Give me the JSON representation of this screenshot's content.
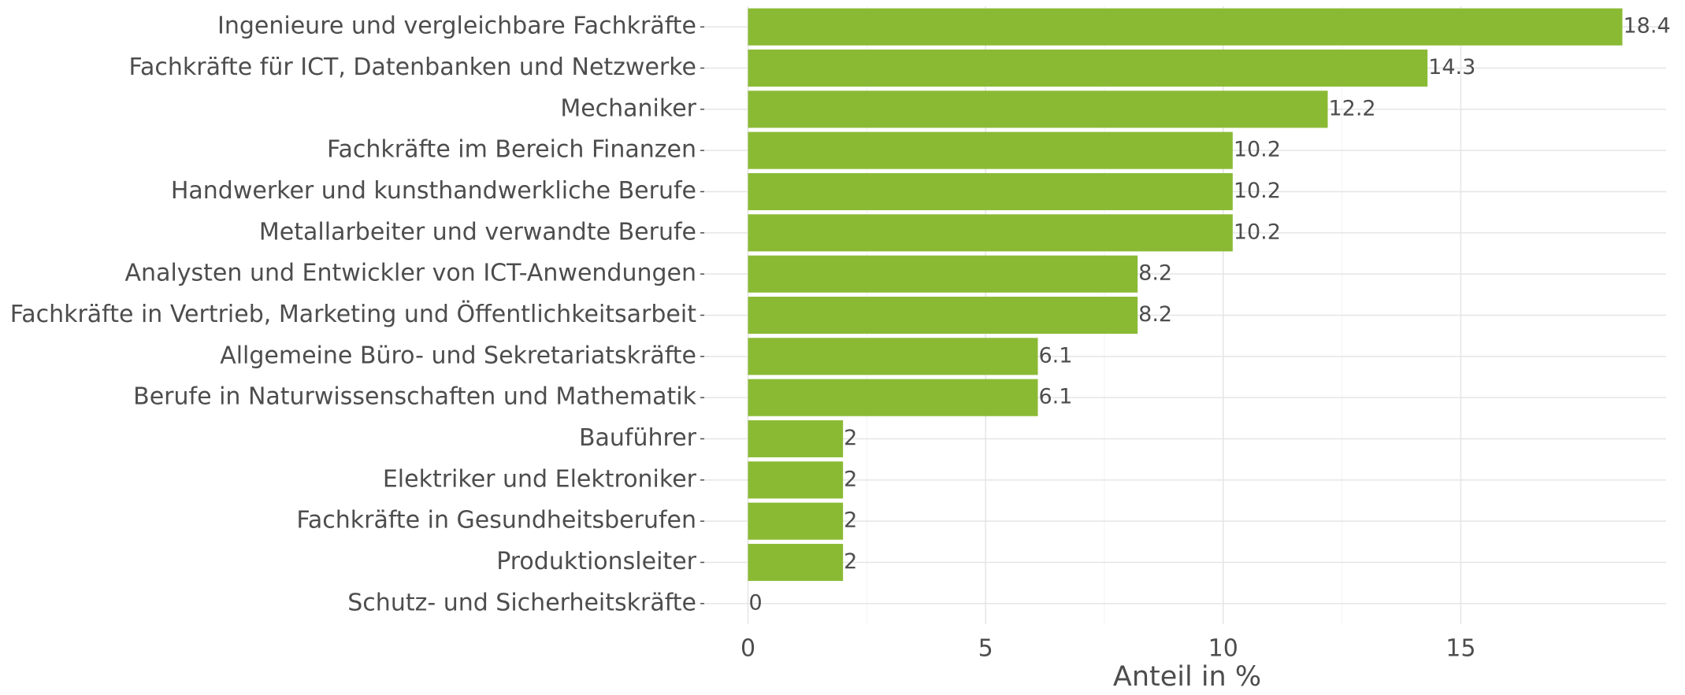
{
  "chart_data": {
    "type": "barh",
    "categories": [
      "Ingenieure und vergleichbare Fachkräfte",
      "Fachkräfte für ICT, Datenbanken und Netzwerke",
      "Mechaniker",
      "Fachkräfte im Bereich Finanzen",
      "Handwerker und kunsthandwerkliche Berufe",
      "Metallarbeiter und verwandte Berufe",
      "Analysten und Entwickler von ICT-Anwendungen",
      "Fachkräfte in Vertrieb, Marketing und Öffentlichkeitsarbeit",
      "Allgemeine Büro- und Sekretariatskräfte",
      "Berufe in Naturwissenschaften und Mathematik",
      "Bauführer",
      "Elektriker und Elektroniker",
      "Fachkräfte in Gesundheitsberufen",
      "Produktionsleiter",
      "Schutz- und Sicherheitskräfte"
    ],
    "values": [
      18.4,
      14.3,
      12.2,
      10.2,
      10.2,
      10.2,
      8.2,
      8.2,
      6.1,
      6.1,
      2,
      2,
      2,
      2,
      0
    ],
    "color": "#8aba34",
    "xlabel": "Anteil in %",
    "xlim": [
      -0.92,
      19.32
    ],
    "xticks": [
      0,
      5,
      10,
      15
    ],
    "grid": true
  }
}
